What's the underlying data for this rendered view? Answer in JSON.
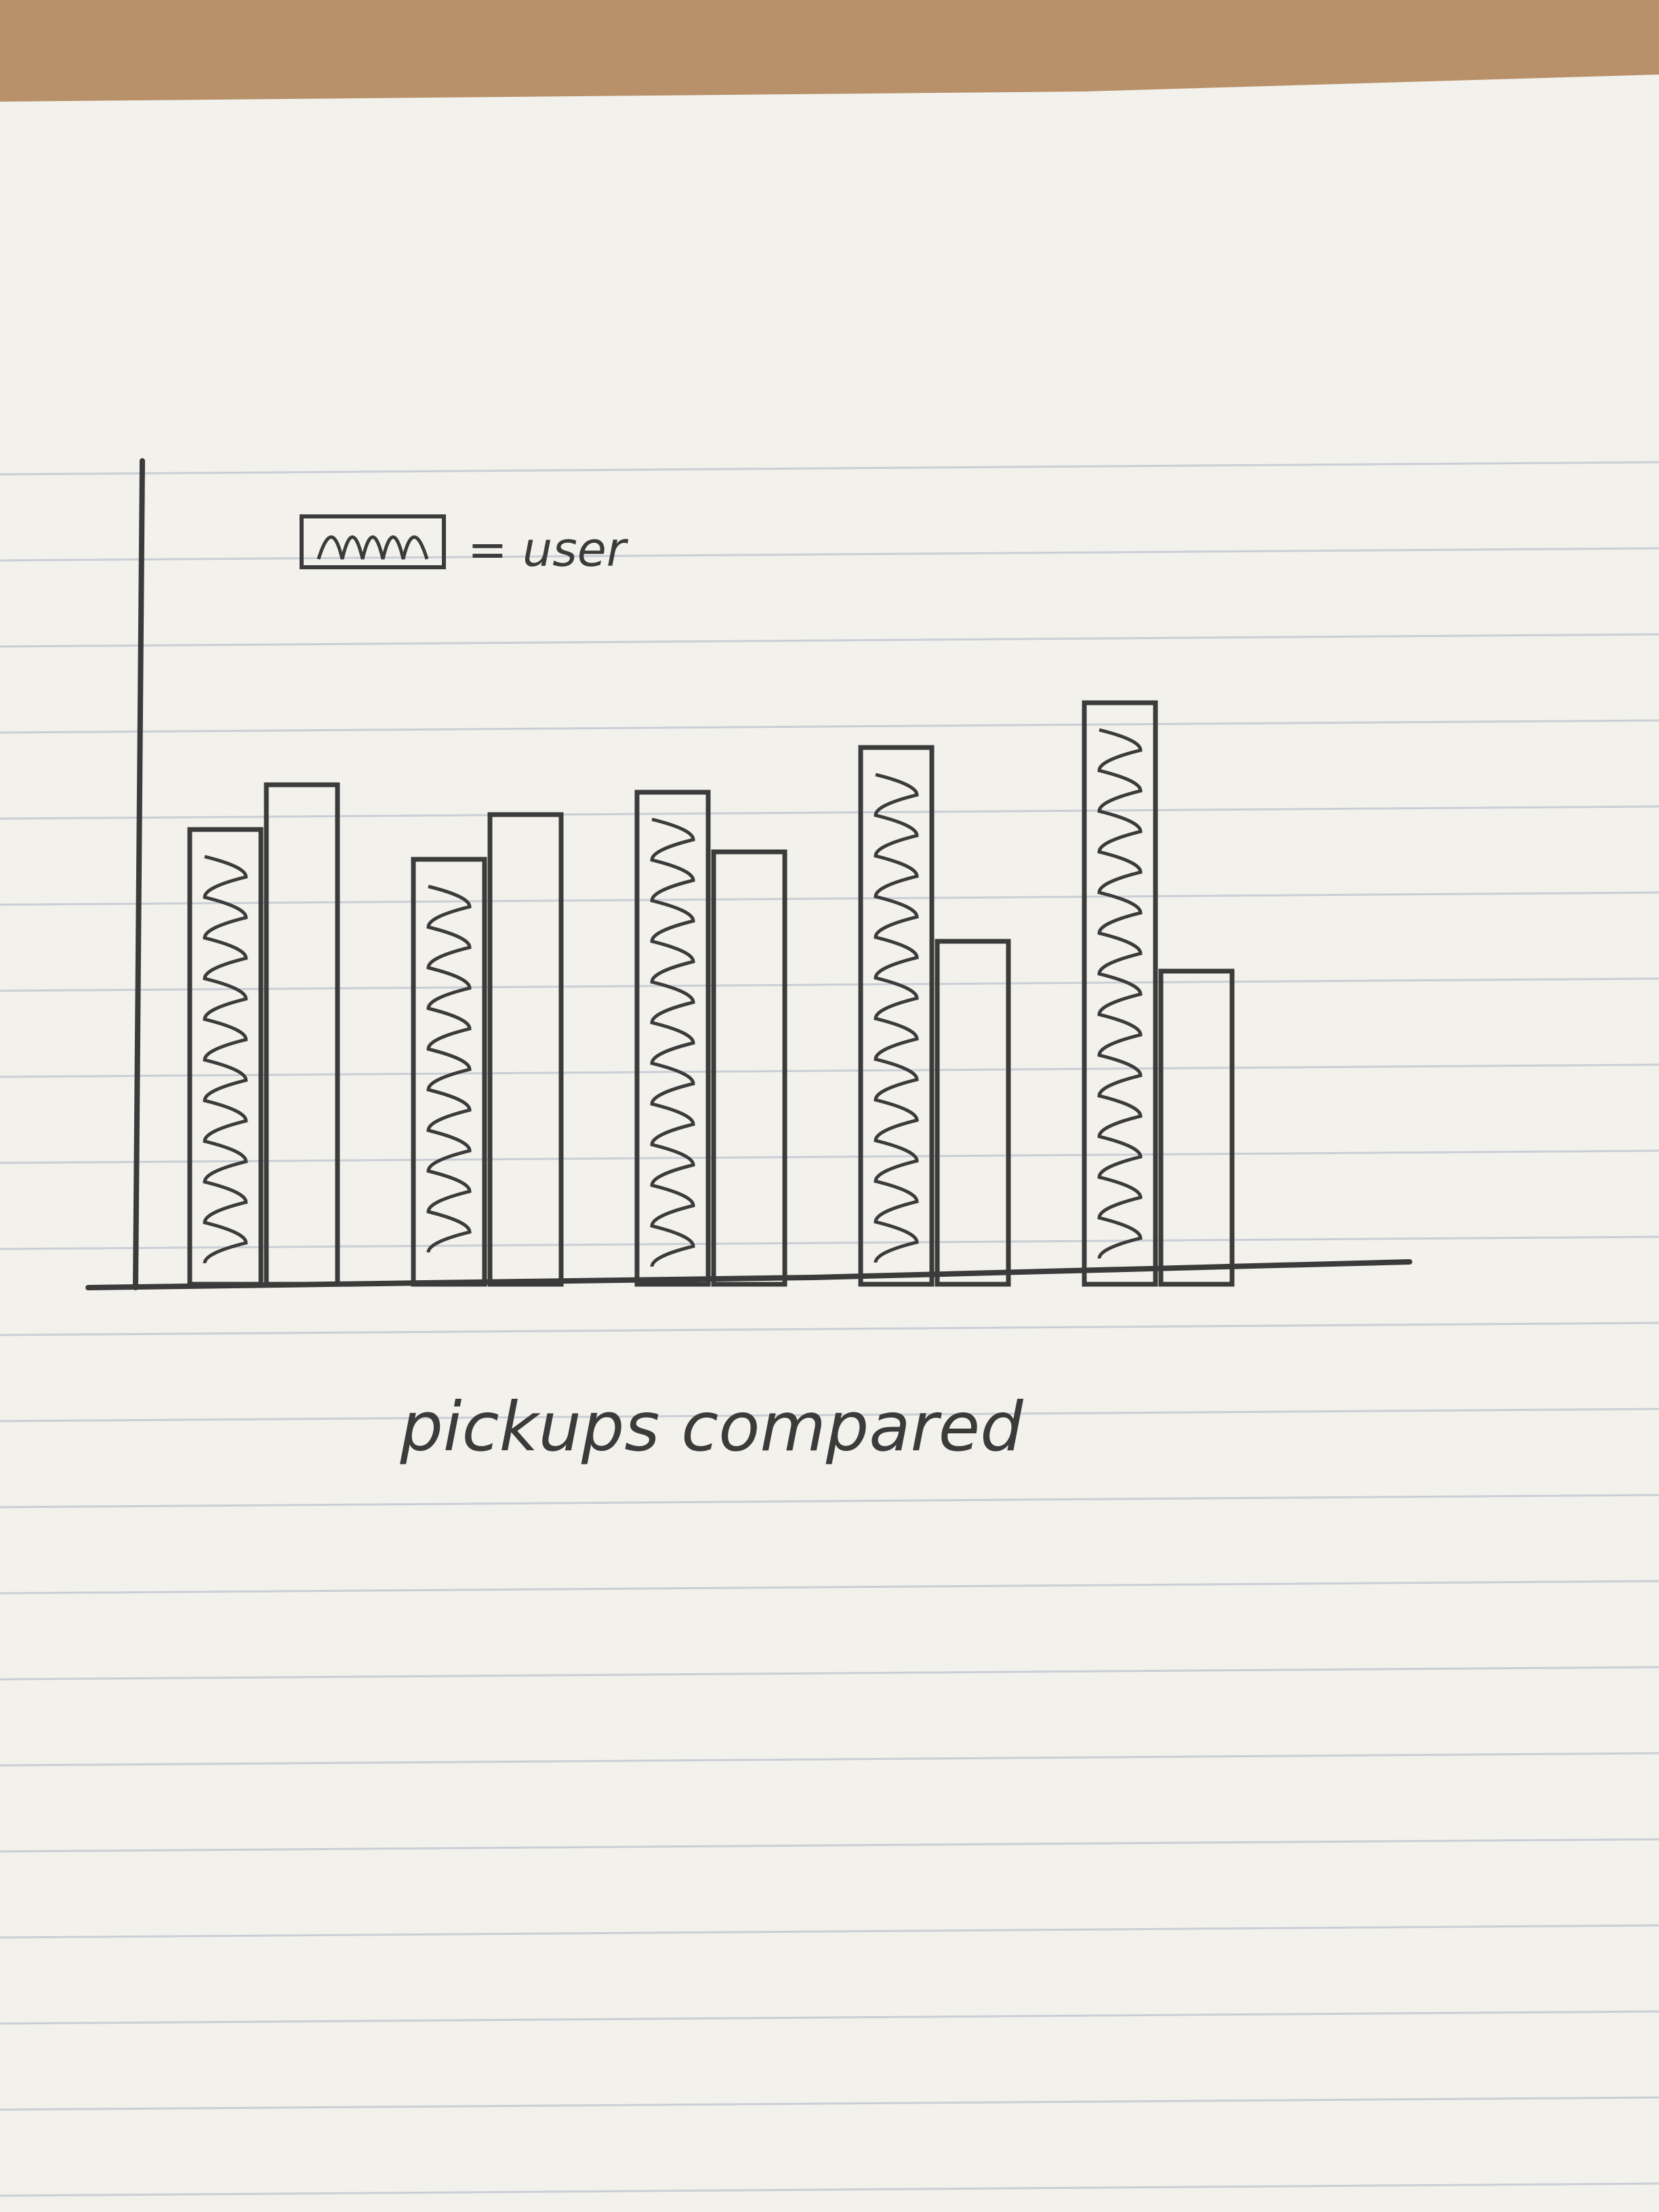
{
  "chart_data": {
    "type": "bar",
    "title": "",
    "xlabel": "pickups compared",
    "ylabel": "",
    "categories": [
      "",
      "",
      "",
      "",
      ""
    ],
    "series": [
      {
        "name": "user",
        "pattern": "zigzag",
        "values": [
          61,
          57,
          66,
          72,
          78
        ]
      },
      {
        "name": "",
        "pattern": "none",
        "values": [
          67,
          63,
          58,
          46,
          42
        ]
      }
    ],
    "ylim": [
      0,
      100
    ],
    "grid": false,
    "legend": {
      "placement": "top-left",
      "text": "= user"
    }
  },
  "colors": {
    "paper": "#f2f1ec",
    "rule_line": "#c9cfd6",
    "pencil": "#3b3b3b",
    "desk": "#b8916a"
  }
}
